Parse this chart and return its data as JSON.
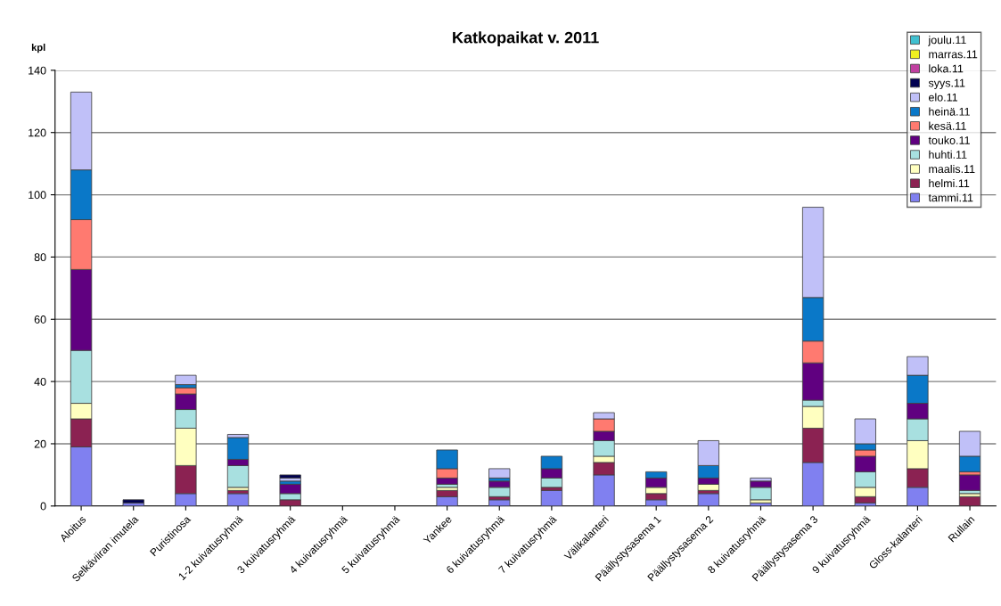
{
  "chart_data": {
    "type": "bar",
    "stacked": true,
    "title": "Katkopaikat v. 2011",
    "ylabel": "kpl",
    "categories": [
      "Aloitus",
      "Selkäviiran imutela",
      "Puristinosa",
      "1-2 kuivatusryhmä",
      "3 kuivatusryhmä",
      "4 kuivatusryhmä",
      "5 kuivatusryhmä",
      "Yankee",
      "6 kuivatusryhmä",
      "7 kuivatusryhmä",
      "Välikalanteri",
      "Päällystysasema 1",
      "Päällystysasema 2",
      "8 kuivatusryhmä",
      "Päällystysasema 3",
      "9 kuivatusryhmä",
      "Gloss-kalanteri",
      "Rullain"
    ],
    "series": [
      {
        "name": "tammi.11",
        "color": "#8080f0",
        "values": [
          19,
          1,
          4,
          4,
          0,
          0,
          0,
          3,
          2,
          5,
          10,
          2,
          4,
          1,
          14,
          1,
          6,
          0
        ]
      },
      {
        "name": "helmi.11",
        "color": "#8b2252",
        "values": [
          9,
          0,
          9,
          1,
          2,
          0,
          0,
          2,
          1,
          1,
          4,
          2,
          1,
          0,
          11,
          2,
          6,
          3
        ]
      },
      {
        "name": "maalis.11",
        "color": "#ffffc0",
        "values": [
          5,
          0,
          12,
          1,
          0,
          0,
          0,
          1,
          0,
          0,
          2,
          2,
          2,
          1,
          7,
          3,
          9,
          1
        ]
      },
      {
        "name": "huhti.11",
        "color": "#a8e0e0",
        "values": [
          17,
          0,
          6,
          7,
          2,
          0,
          0,
          1,
          3,
          3,
          5,
          0,
          0,
          4,
          2,
          5,
          7,
          1
        ]
      },
      {
        "name": "touko.11",
        "color": "#600080",
        "values": [
          26,
          0,
          5,
          2,
          3,
          0,
          0,
          2,
          2,
          3,
          3,
          3,
          2,
          2,
          12,
          5,
          5,
          5
        ]
      },
      {
        "name": "kesä.11",
        "color": "#ff7a70",
        "values": [
          16,
          0,
          2,
          0,
          0,
          0,
          0,
          3,
          0,
          0,
          4,
          0,
          0,
          0,
          7,
          2,
          0,
          1
        ]
      },
      {
        "name": "heinä.11",
        "color": "#0a78c8",
        "values": [
          16,
          0,
          1,
          7,
          1,
          0,
          0,
          6,
          1,
          4,
          0,
          2,
          4,
          0,
          14,
          2,
          9,
          5
        ]
      },
      {
        "name": "elo.11",
        "color": "#c0c0f8",
        "values": [
          25,
          0,
          3,
          1,
          1,
          0,
          0,
          0,
          3,
          0,
          2,
          0,
          8,
          1,
          29,
          8,
          6,
          8
        ]
      },
      {
        "name": "syys.11",
        "color": "#000050",
        "values": [
          0,
          1,
          0,
          0,
          1,
          0,
          0,
          0,
          0,
          0,
          0,
          0,
          0,
          0,
          0,
          0,
          0,
          0
        ]
      },
      {
        "name": "loka.11",
        "color": "#c040a0",
        "values": [
          0,
          0,
          0,
          0,
          0,
          0,
          0,
          0,
          0,
          0,
          0,
          0,
          0,
          0,
          0,
          0,
          0,
          0
        ]
      },
      {
        "name": "marras.11",
        "color": "#f0f020",
        "values": [
          0,
          0,
          0,
          0,
          0,
          0,
          0,
          0,
          0,
          0,
          0,
          0,
          0,
          0,
          0,
          0,
          0,
          0
        ]
      },
      {
        "name": "joulu.11",
        "color": "#40c0d0",
        "values": [
          0,
          0,
          0,
          0,
          0,
          0,
          0,
          0,
          0,
          0,
          0,
          0,
          0,
          0,
          0,
          0,
          0,
          0
        ]
      }
    ],
    "ylim": [
      0,
      140
    ],
    "yticks": [
      0,
      20,
      40,
      60,
      80,
      100,
      120,
      140
    ],
    "grid": "y",
    "legend": "top right"
  }
}
